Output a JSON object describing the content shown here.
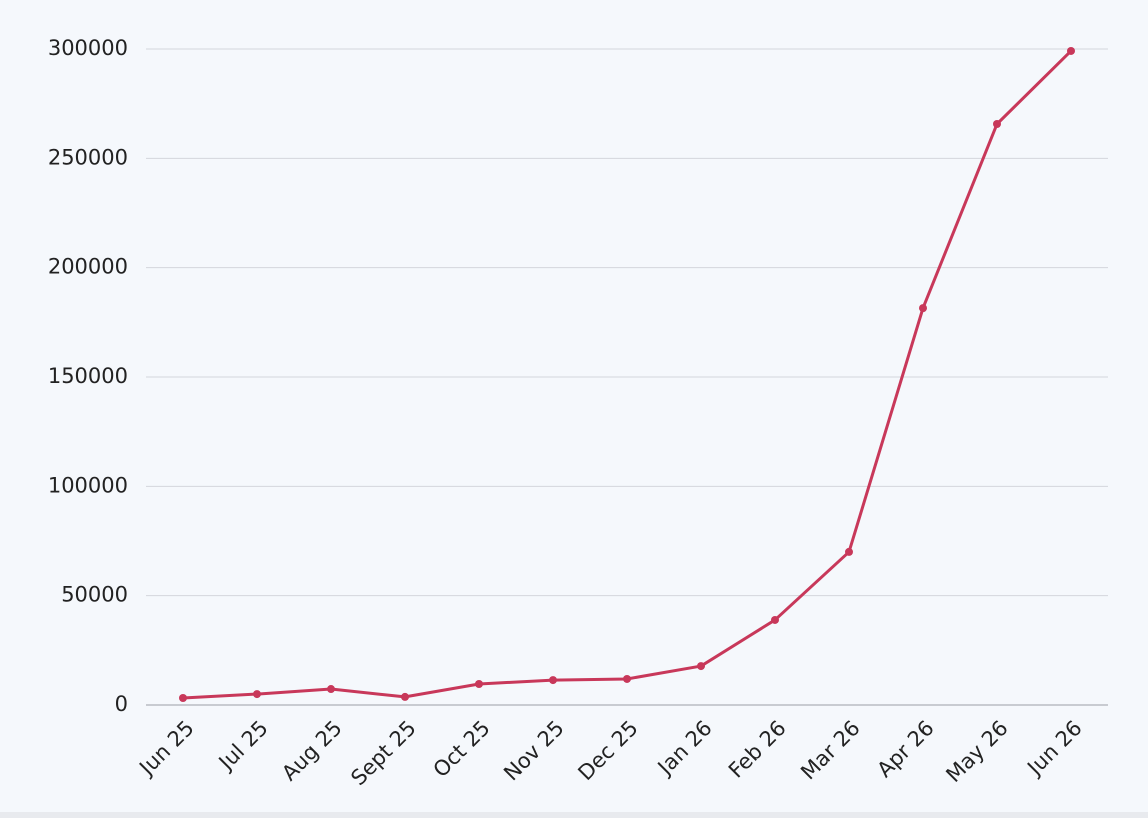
{
  "chart_data": {
    "type": "line",
    "categories": [
      "Jun 25",
      "Jul 25",
      "Aug 25",
      "Sept 25",
      "Oct 25",
      "Nov 25",
      "Dec 25",
      "Jan 26",
      "Feb 26",
      "Mar 26",
      "Apr 26",
      "May 26",
      "Jun 26"
    ],
    "values": [
      3200,
      5000,
      7300,
      3700,
      9600,
      11400,
      11900,
      17800,
      38900,
      70000,
      181500,
      265700,
      299100
    ],
    "color": "#c8385a",
    "ylim": [
      0,
      300000
    ],
    "yticks": [
      0,
      50000,
      100000,
      150000,
      200000,
      250000,
      300000
    ],
    "grid": true
  }
}
